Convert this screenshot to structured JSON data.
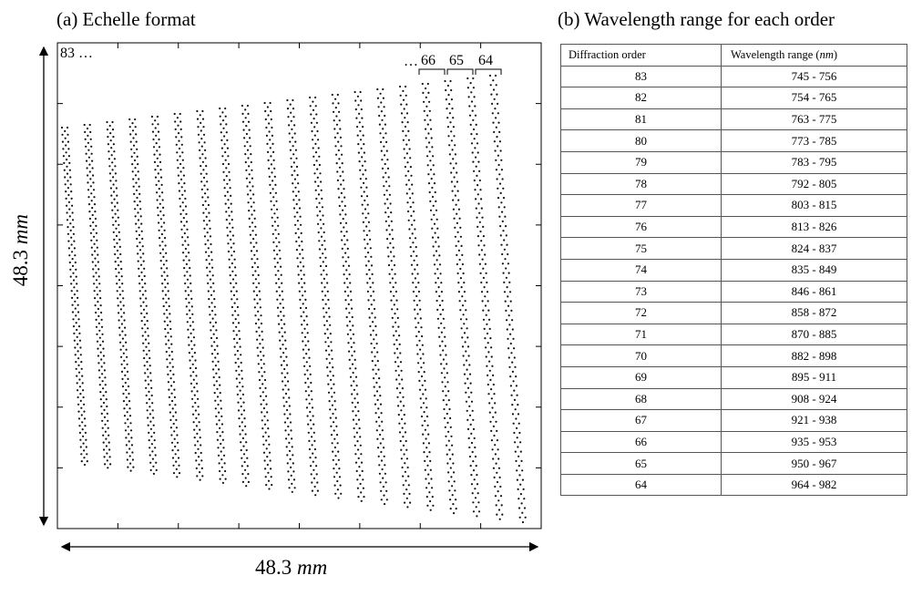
{
  "panel_a": {
    "title": "(a) Echelle format",
    "width_label": "48.3",
    "height_label": "48.3",
    "unit": "mm",
    "first_label": "83 …",
    "ellipsis": "…",
    "labeled_orders": [
      "66",
      "65",
      "64"
    ]
  },
  "panel_b": {
    "title": "(b) Wavelength range for each order",
    "col_order": "Diffraction order",
    "col_range_prefix": "Wavelength range (",
    "col_range_unit": "nm",
    "col_range_suffix": ")",
    "rows": [
      {
        "order": "83",
        "range": "745 - 756"
      },
      {
        "order": "82",
        "range": "754 - 765"
      },
      {
        "order": "81",
        "range": "763 - 775"
      },
      {
        "order": "80",
        "range": "773 - 785"
      },
      {
        "order": "79",
        "range": "783 - 795"
      },
      {
        "order": "78",
        "range": "792 - 805"
      },
      {
        "order": "77",
        "range": "803 - 815"
      },
      {
        "order": "76",
        "range": "813 - 826"
      },
      {
        "order": "75",
        "range": "824 - 837"
      },
      {
        "order": "74",
        "range": "835 - 849"
      },
      {
        "order": "73",
        "range": "846 - 861"
      },
      {
        "order": "72",
        "range": "858 - 872"
      },
      {
        "order": "71",
        "range": "870 - 885"
      },
      {
        "order": "70",
        "range": "882 - 898"
      },
      {
        "order": "69",
        "range": "895 - 911"
      },
      {
        "order": "68",
        "range": "908 - 924"
      },
      {
        "order": "67",
        "range": "921 - 938"
      },
      {
        "order": "66",
        "range": "935 - 953"
      },
      {
        "order": "65",
        "range": "950 - 967"
      },
      {
        "order": "64",
        "range": "964 - 982"
      }
    ]
  }
}
